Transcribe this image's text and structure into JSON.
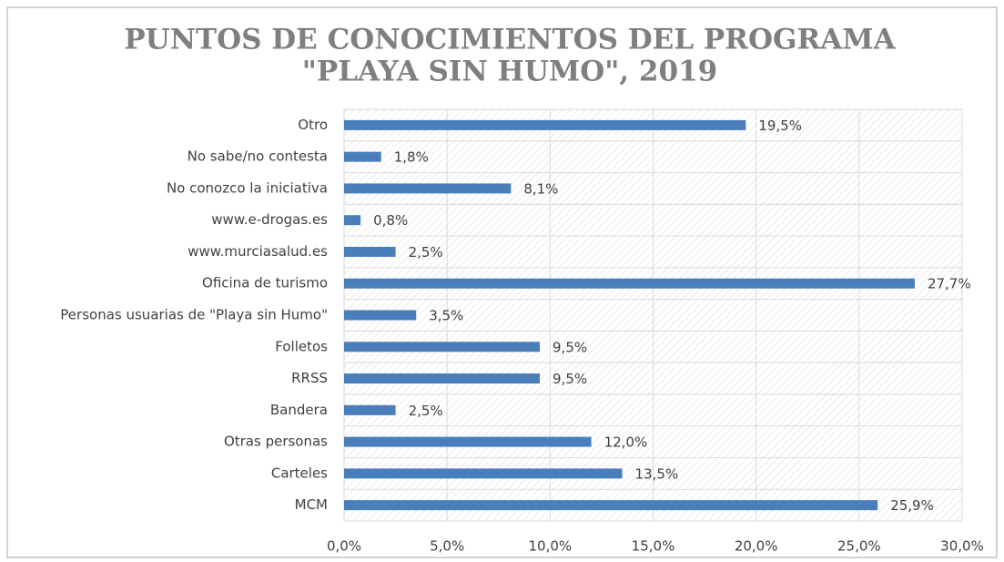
{
  "chart_data": {
    "type": "hbar",
    "title": [
      "PUNTOS DE CONOCIMIENTOS DEL PROGRAMA",
      "\"PLAYA SIN HUMO\", 2019"
    ],
    "categories": [
      "Otro",
      "No sabe/no contesta",
      "No conozco la iniciativa",
      "www.e-drogas.es",
      "www.murciasalud.es",
      "Oficina de turismo",
      "Personas usuarias de \"Playa sin Humo\"",
      "Folletos",
      "RRSS",
      "Bandera",
      "Otras personas",
      "Carteles",
      "MCM"
    ],
    "values": [
      19.5,
      1.8,
      8.1,
      0.8,
      2.5,
      27.7,
      3.5,
      9.5,
      9.5,
      2.5,
      12.0,
      13.5,
      25.9
    ],
    "value_labels": [
      "19,5%",
      "1,8%",
      "8,1%",
      "0,8%",
      "2,5%",
      "27,7%",
      "3,5%",
      "9,5%",
      "9,5%",
      "2,5%",
      "12,0%",
      "13,5%",
      "25,9%"
    ],
    "color": "#4a7ebb",
    "xlim": [
      0,
      30
    ],
    "xticks": [
      {
        "value": 0,
        "label": "0,0%"
      },
      {
        "value": 5,
        "label": "5,0%"
      },
      {
        "value": 10,
        "label": "10,0%"
      },
      {
        "value": 15,
        "label": "15,0%"
      },
      {
        "value": 20,
        "label": "20,0%"
      },
      {
        "value": 25,
        "label": "25,0%"
      },
      {
        "value": 30,
        "label": "30,0%"
      }
    ],
    "grid": true
  }
}
